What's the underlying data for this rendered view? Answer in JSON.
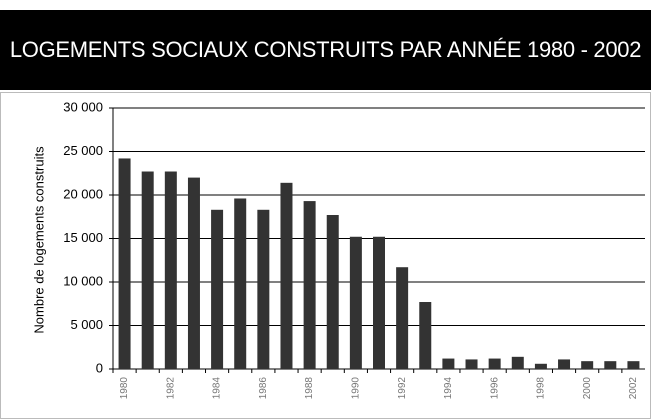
{
  "chart_data": {
    "type": "bar",
    "title": "LOGEMENTS SOCIAUX CONSTRUITS PAR ANNÉE 1980 - 2002",
    "y_label": "Nombre de logements construits",
    "categories": [
      "1980",
      null,
      "1982",
      null,
      "1984",
      null,
      "1986",
      null,
      "1988",
      null,
      "1990",
      null,
      "1992",
      null,
      "1994",
      null,
      "1996",
      null,
      "1998",
      null,
      "2000",
      null,
      "2002"
    ],
    "values": [
      24200,
      22700,
      22700,
      22000,
      18300,
      19600,
      18300,
      21400,
      19300,
      17700,
      15200,
      15200,
      11700,
      7700,
      1200,
      1100,
      1200,
      1400,
      600,
      1100,
      900,
      900,
      900
    ],
    "color": "#333333",
    "ylim": [
      0,
      30000
    ],
    "yticks": [
      {
        "value": 0,
        "label": "0"
      },
      {
        "value": 5000,
        "label": "5 000"
      },
      {
        "value": 10000,
        "label": "10 000"
      },
      {
        "value": 15000,
        "label": "15 000"
      },
      {
        "value": 20000,
        "label": "20 000"
      },
      {
        "value": 25000,
        "label": "25 000"
      },
      {
        "value": 30000,
        "label": "30 000"
      }
    ],
    "grid": true
  }
}
